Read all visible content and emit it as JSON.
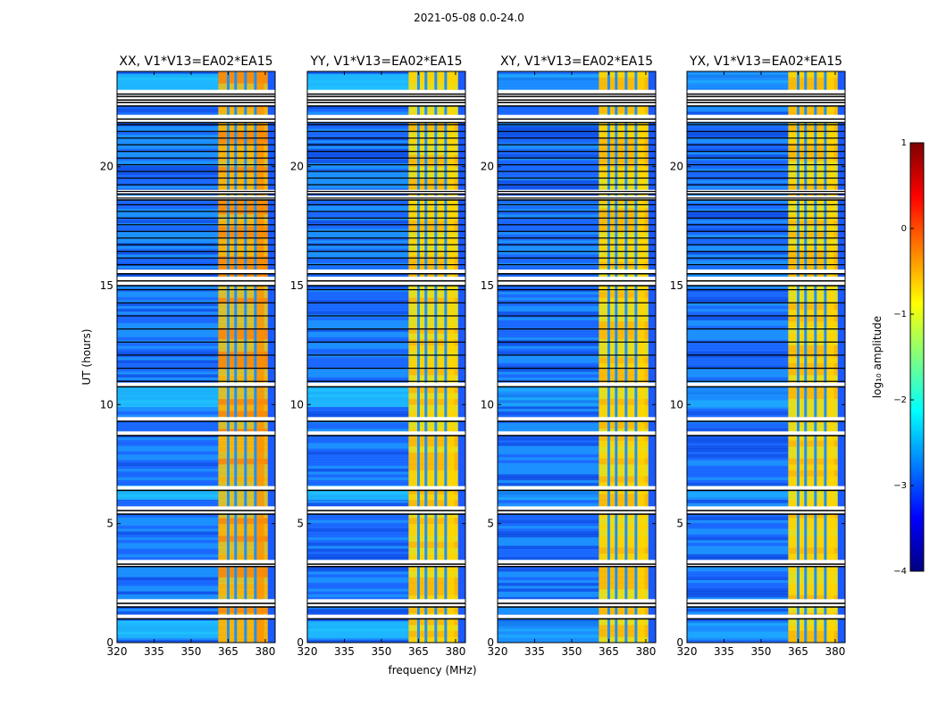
{
  "suptitle": "2021-05-08 0.0-24.0",
  "chart_data": {
    "type": "heatmap",
    "panels": [
      {
        "title": "XX, V1*V13=EA02*EA15",
        "pol": "XX"
      },
      {
        "title": "YY, V1*V13=EA02*EA15",
        "pol": "YY"
      },
      {
        "title": "XY, V1*V13=EA02*EA15",
        "pol": "XY"
      },
      {
        "title": "YX, V1*V13=EA02*EA15",
        "pol": "YX"
      }
    ],
    "xlabel": "frequency (MHz)",
    "ylabel": "UT (hours)",
    "xlim": [
      320,
      384
    ],
    "ylim": [
      0,
      24
    ],
    "xticks": [
      320,
      335,
      350,
      365,
      380
    ],
    "xtick_labels": [
      "320",
      "335",
      "350",
      "365",
      "380"
    ],
    "yticks": [
      0,
      5,
      10,
      15,
      20
    ],
    "ytick_labels": [
      "0",
      "5",
      "10",
      "15",
      "20"
    ],
    "rfi_band_mhz": [
      361,
      381
    ],
    "rfi_gaps_mhz": [
      365,
      368,
      372,
      376
    ],
    "bright_subband_mhz": [
      376,
      379.5
    ],
    "flagged_ut_hours": [
      1.1,
      1.6,
      1.75,
      3.3,
      3.4,
      5.5,
      5.65,
      6.5,
      8.8,
      9.4,
      10.85,
      15.1,
      15.3,
      15.6,
      18.7,
      18.95,
      21.95,
      22.1,
      22.65,
      22.8,
      22.9,
      23.05,
      23.15
    ],
    "colorbar": {
      "label": "log₁₀ amplitude",
      "range": [
        -4,
        1
      ],
      "ticks": [
        1,
        0,
        -1,
        -2,
        -3,
        -4
      ],
      "tick_labels": [
        "1",
        "0",
        "−1",
        "−2",
        "−3",
        "−4"
      ],
      "colormap": "jet"
    },
    "colors": {
      "background_low": "#1a4cff",
      "background_mid": "#1e90ff",
      "background_bright": "#20d0ff",
      "rfi_high": "#ff8c00",
      "rfi_mid": "#ffd700",
      "rfi_low": "#c8f040",
      "flag_white": "#ffffff",
      "flag_black": "#000000"
    }
  }
}
